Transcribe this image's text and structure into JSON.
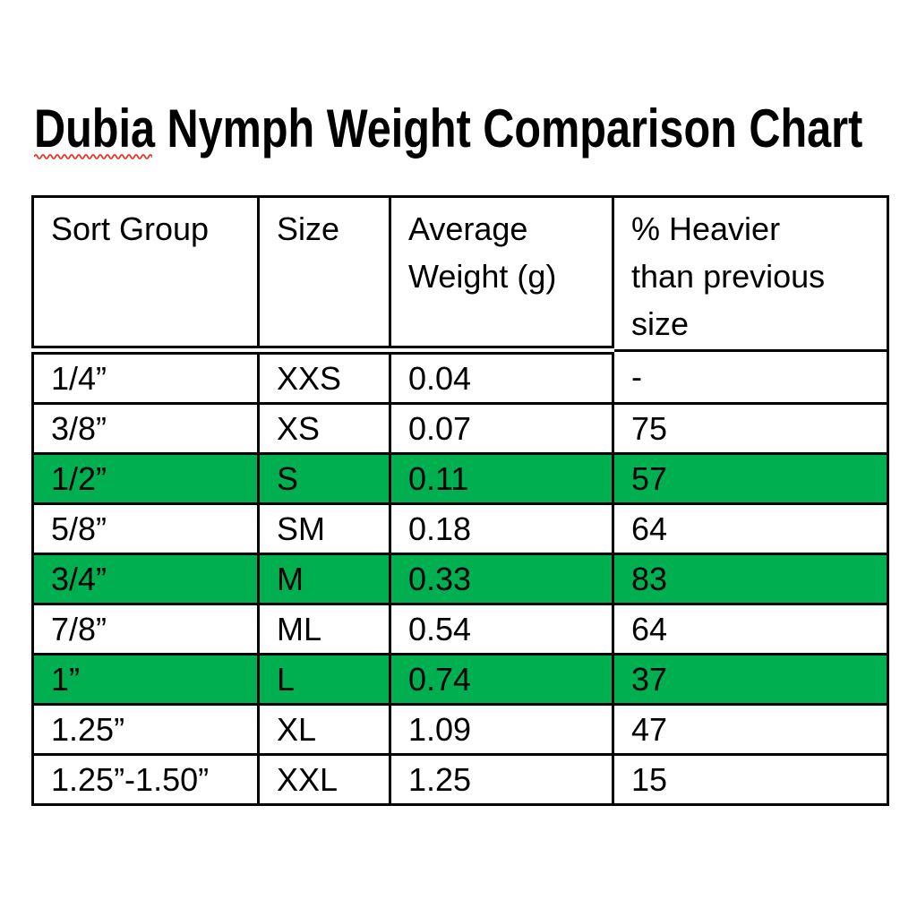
{
  "title": {
    "text": "Dubia Nymph Weight Comparison Chart",
    "misspelled_word": "Dubia",
    "rest": " Nymph Weight Comparison Chart",
    "squiggle_color": "#e8352b"
  },
  "table": {
    "headers": [
      "Sort Group",
      "Size",
      "Average\nWeight (g)",
      "% Heavier\nthan previous\nsize"
    ],
    "highlight_color": "#00b050",
    "rows": [
      {
        "sort_group": "1/4”",
        "size": "XXS",
        "avg_weight": "0.04",
        "pct_heavier": "-",
        "highlighted": false
      },
      {
        "sort_group": "3/8”",
        "size": "XS",
        "avg_weight": "0.07",
        "pct_heavier": "75",
        "highlighted": false
      },
      {
        "sort_group": "1/2”",
        "size": "S",
        "avg_weight": "0.11",
        "pct_heavier": "57",
        "highlighted": true
      },
      {
        "sort_group": "5/8”",
        "size": "SM",
        "avg_weight": "0.18",
        "pct_heavier": "64",
        "highlighted": false
      },
      {
        "sort_group": "3/4”",
        "size": "M",
        "avg_weight": "0.33",
        "pct_heavier": "83",
        "highlighted": true
      },
      {
        "sort_group": "7/8”",
        "size": "ML",
        "avg_weight": "0.54",
        "pct_heavier": "64",
        "highlighted": false
      },
      {
        "sort_group": "1”",
        "size": "L",
        "avg_weight": "0.74",
        "pct_heavier": "37",
        "highlighted": true
      },
      {
        "sort_group": "1.25”",
        "size": "XL",
        "avg_weight": "1.09",
        "pct_heavier": "47",
        "highlighted": false
      },
      {
        "sort_group": "1.25”-1.50”",
        "size": "XXL",
        "avg_weight": "1.25",
        "pct_heavier": "15",
        "highlighted": false
      }
    ]
  }
}
